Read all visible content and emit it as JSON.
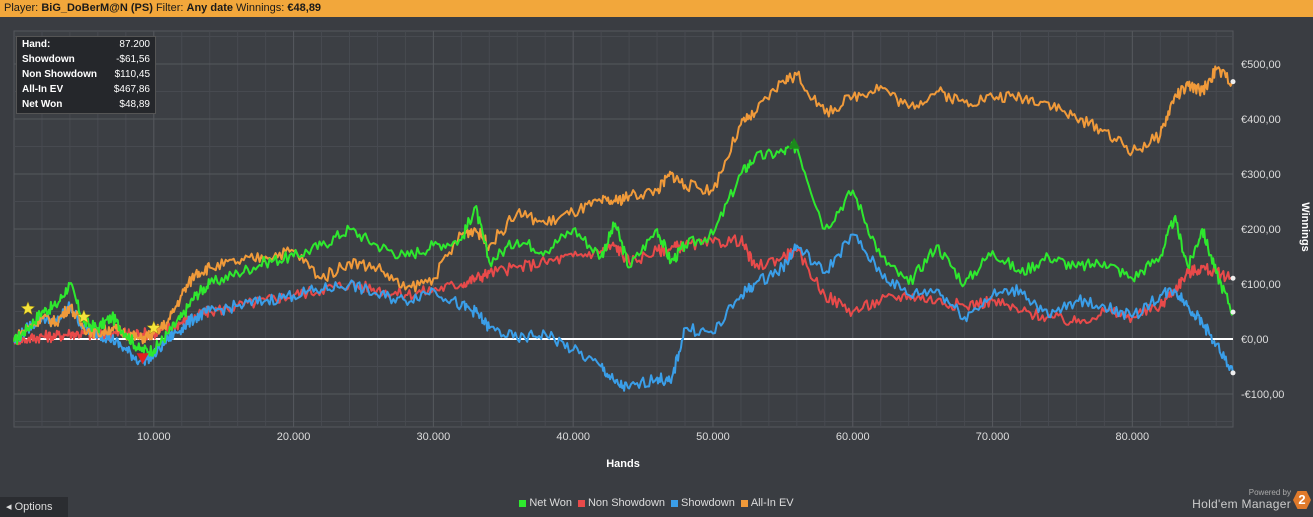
{
  "header": {
    "player_label": "Player:",
    "player_value": "BiG_DoBerM@N (PS)",
    "filter_label": "Filter:",
    "filter_value": "Any date",
    "winnings_label": "Winnings:",
    "winnings_value": "€48,89"
  },
  "stats": [
    {
      "label": "Hand:",
      "value": "87.200"
    },
    {
      "label": "Showdown",
      "value": "-$61,56"
    },
    {
      "label": "Non Showdown",
      "value": "$110,45"
    },
    {
      "label": "All-In EV",
      "value": "$467,86"
    },
    {
      "label": "Net Won",
      "value": "$48,89"
    }
  ],
  "footer": {
    "options_label": "Options",
    "powered_by": "Powered by",
    "brand": "Hold'em Manager",
    "brand_badge": "2"
  },
  "chart_data": {
    "type": "line",
    "xlabel": "Hands",
    "ylabel": "Winnings",
    "xlim": [
      0,
      87200
    ],
    "ylim": [
      -160,
      560
    ],
    "x_ticks": [
      10000,
      20000,
      30000,
      40000,
      50000,
      60000,
      70000,
      80000
    ],
    "x_tick_labels": [
      "10.000",
      "20.000",
      "30.000",
      "40.000",
      "50.000",
      "60.000",
      "70.000",
      "80.000"
    ],
    "y_ticks": [
      -100,
      0,
      100,
      200,
      300,
      400,
      500
    ],
    "y_tick_labels": [
      "-€100,00",
      "€0,00",
      "€100,00",
      "€200,00",
      "€300,00",
      "€400,00",
      "€500,00"
    ],
    "grid": true,
    "legend": "bottom",
    "x": [
      0,
      1000,
      2000,
      3000,
      4000,
      5000,
      6000,
      7000,
      8000,
      9000,
      10000,
      11000,
      12000,
      13000,
      14000,
      16000,
      18000,
      20000,
      22000,
      24000,
      26000,
      28000,
      30000,
      32000,
      33000,
      34000,
      36000,
      38000,
      40000,
      42000,
      43000,
      44000,
      46000,
      47000,
      48000,
      50000,
      52000,
      53000,
      55000,
      56000,
      58000,
      60000,
      62000,
      64000,
      66000,
      68000,
      70000,
      72000,
      74000,
      76000,
      78000,
      80000,
      82000,
      83000,
      84000,
      85000,
      86000,
      87200
    ],
    "series": [
      {
        "name": "Net Won",
        "color": "#2ee82e",
        "values": [
          -5,
          20,
          50,
          60,
          100,
          30,
          20,
          40,
          10,
          -20,
          -20,
          10,
          40,
          80,
          100,
          120,
          140,
          150,
          170,
          200,
          170,
          150,
          170,
          180,
          240,
          140,
          180,
          160,
          200,
          150,
          210,
          130,
          200,
          140,
          170,
          190,
          300,
          330,
          340,
          350,
          200,
          270,
          150,
          100,
          170,
          100,
          160,
          120,
          150,
          130,
          140,
          110,
          150,
          220,
          130,
          200,
          120,
          48.89
        ]
      },
      {
        "name": "Non Showdown",
        "color": "#e84a4a",
        "values": [
          0,
          0,
          5,
          5,
          10,
          10,
          5,
          10,
          10,
          10,
          10,
          20,
          30,
          40,
          50,
          60,
          70,
          80,
          90,
          100,
          90,
          80,
          90,
          100,
          110,
          120,
          130,
          140,
          150,
          160,
          170,
          140,
          160,
          165,
          170,
          175,
          180,
          130,
          150,
          160,
          80,
          50,
          70,
          80,
          70,
          60,
          70,
          50,
          40,
          30,
          50,
          40,
          60,
          90,
          120,
          130,
          120,
          110.45
        ]
      },
      {
        "name": "Showdown",
        "color": "#3a9ee8",
        "values": [
          -5,
          20,
          40,
          30,
          60,
          20,
          10,
          0,
          -20,
          -40,
          -30,
          0,
          20,
          40,
          50,
          60,
          70,
          80,
          90,
          100,
          80,
          70,
          90,
          60,
          50,
          20,
          0,
          10,
          -20,
          -50,
          -80,
          -90,
          -70,
          -80,
          20,
          10,
          80,
          100,
          130,
          170,
          120,
          190,
          120,
          80,
          90,
          40,
          80,
          90,
          40,
          70,
          60,
          40,
          80,
          90,
          60,
          30,
          -10,
          -61.56
        ]
      },
      {
        "name": "All-In EV",
        "color": "#f09a3a",
        "values": [
          0,
          20,
          40,
          30,
          60,
          20,
          10,
          20,
          10,
          0,
          10,
          30,
          80,
          120,
          130,
          140,
          150,
          160,
          110,
          140,
          130,
          90,
          110,
          190,
          200,
          170,
          230,
          210,
          230,
          250,
          250,
          260,
          270,
          300,
          280,
          270,
          390,
          410,
          470,
          480,
          410,
          440,
          460,
          420,
          450,
          430,
          440,
          440,
          430,
          400,
          380,
          340,
          370,
          440,
          460,
          450,
          490,
          467.86
        ]
      }
    ],
    "markers": [
      {
        "x": 1000,
        "y": 55,
        "shape": "star",
        "color": "#f5e33a"
      },
      {
        "x": 5000,
        "y": 40,
        "shape": "star",
        "color": "#f5e33a"
      },
      {
        "x": 10000,
        "y": 20,
        "shape": "star",
        "color": "#f5e33a"
      },
      {
        "x": 9200,
        "y": -35,
        "shape": "triangle-down",
        "color": "#e02020"
      },
      {
        "x": 55800,
        "y": 355,
        "shape": "triangle-up",
        "color": "#1c8a1c"
      }
    ]
  }
}
